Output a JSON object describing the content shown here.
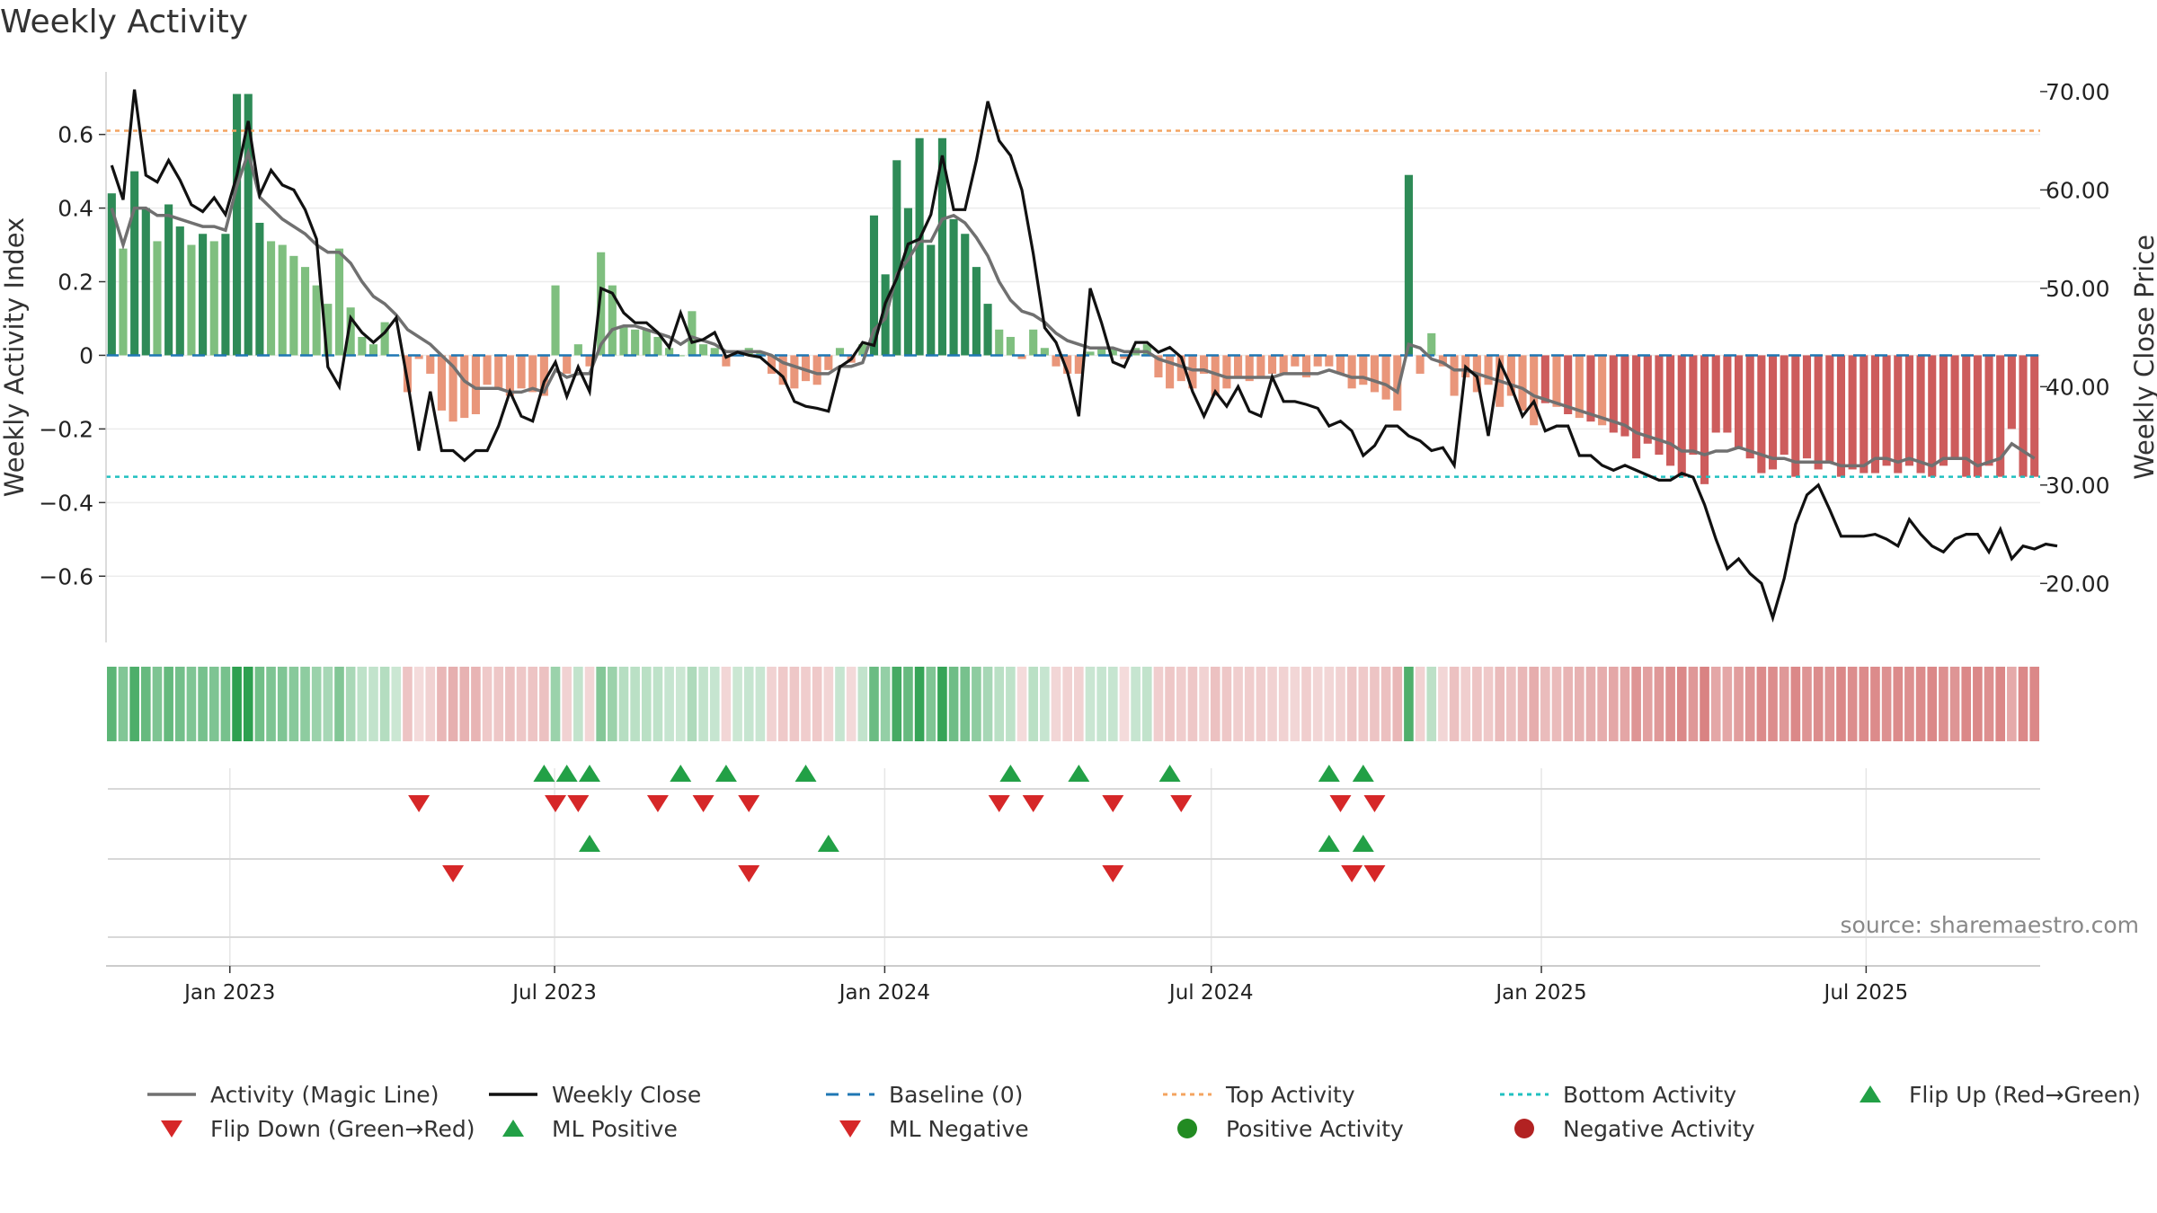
{
  "title": "Weekly Activity",
  "source": "source: sharemaestro.com",
  "chart_data": {
    "type": "bar",
    "title": "Weekly Activity",
    "ylabel": "Weekly Activity Index",
    "y2label": "Weekly Close Price",
    "ylim": [
      -0.78,
      0.77
    ],
    "y2lim": [
      14.0,
      72.0
    ],
    "yticks": [
      0.6,
      0.4,
      0.2,
      0,
      -0.2,
      -0.4,
      -0.6
    ],
    "ytick_labels": [
      "0.6",
      "0.4",
      "0.2",
      "0",
      "−0.2",
      "−0.4",
      "−0.6"
    ],
    "y2ticks": [
      70,
      60,
      50,
      40,
      30,
      20
    ],
    "y2tick_labels": [
      "70.00",
      "60.00",
      "50.00",
      "40.00",
      "30.00",
      "20.00"
    ],
    "xlabels": [
      "Jan 2023",
      "Jul 2023",
      "Jan 2024",
      "Jul 2024",
      "Jan 2025",
      "Jul 2025"
    ],
    "x_start": "2022-10-24",
    "x_end": "2025-10-06",
    "x_label_dates": [
      "2023-01-01",
      "2023-07-01",
      "2024-01-01",
      "2024-07-01",
      "2025-01-01",
      "2025-07-01"
    ],
    "top_activity": 0.61,
    "bottom_activity": -0.33,
    "baseline": 0,
    "activity": [
      0.44,
      0.29,
      0.5,
      0.4,
      0.31,
      0.41,
      0.35,
      0.3,
      0.33,
      0.31,
      0.33,
      0.71,
      0.71,
      0.36,
      0.31,
      0.3,
      0.27,
      0.24,
      0.19,
      0.14,
      0.29,
      0.13,
      0.05,
      0.03,
      0.09,
      0,
      -0.1,
      -0.01,
      -0.05,
      -0.15,
      -0.18,
      -0.17,
      -0.16,
      -0.08,
      -0.09,
      -0.11,
      -0.09,
      -0.1,
      -0.11,
      0.19,
      -0.05,
      0.03,
      -0.03,
      0.28,
      0.19,
      0.08,
      0.07,
      0.07,
      0.05,
      0.02,
      0,
      0.12,
      0.03,
      0.02,
      -0.03,
      0,
      0.02,
      0.01,
      -0.05,
      -0.08,
      -0.09,
      -0.07,
      -0.08,
      -0.04,
      0.02,
      -0.02,
      0.03,
      0.38,
      0.22,
      0.53,
      0.4,
      0.59,
      0.3,
      0.59,
      0.37,
      0.33,
      0.24,
      0.14,
      0.07,
      0.05,
      -0.01,
      0.07,
      0.02,
      -0.03,
      -0.05,
      -0.05,
      0.01,
      0.02,
      0.02,
      -0.01,
      0.02,
      0.03,
      -0.06,
      -0.09,
      -0.07,
      -0.09,
      -0.05,
      -0.11,
      -0.09,
      -0.06,
      -0.07,
      -0.06,
      -0.05,
      -0.05,
      -0.03,
      -0.06,
      -0.03,
      -0.03,
      -0.05,
      -0.09,
      -0.08,
      -0.1,
      -0.12,
      -0.15,
      0.49,
      -0.05,
      0.06,
      -0.03,
      -0.11,
      -0.06,
      -0.1,
      -0.08,
      -0.14,
      -0.11,
      -0.15,
      -0.19,
      -0.13,
      -0.14,
      -0.16,
      -0.17,
      -0.18,
      -0.19,
      -0.21,
      -0.22,
      -0.28,
      -0.24,
      -0.27,
      -0.3,
      -0.33,
      -0.27,
      -0.35,
      -0.21,
      -0.21,
      -0.25,
      -0.28,
      -0.32,
      -0.31,
      -0.27,
      -0.33,
      -0.28,
      -0.31,
      -0.29,
      -0.33,
      -0.31,
      -0.32,
      -0.32,
      -0.3,
      -0.32,
      -0.3,
      -0.32,
      -0.33,
      -0.3,
      -0.28,
      -0.33,
      -0.33,
      -0.3,
      -0.33,
      -0.2,
      -0.33,
      -0.33
    ],
    "magic_line": [
      0.4,
      0.3,
      0.4,
      0.4,
      0.38,
      0.38,
      0.37,
      0.36,
      0.35,
      0.35,
      0.34,
      0.46,
      0.55,
      0.43,
      0.4,
      0.37,
      0.35,
      0.33,
      0.3,
      0.28,
      0.28,
      0.25,
      0.2,
      0.16,
      0.14,
      0.11,
      0.07,
      0.05,
      0.03,
      0,
      -0.03,
      -0.07,
      -0.09,
      -0.09,
      -0.09,
      -0.1,
      -0.1,
      -0.09,
      -0.1,
      -0.04,
      -0.06,
      -0.05,
      -0.05,
      0.03,
      0.07,
      0.08,
      0.08,
      0.07,
      0.06,
      0.05,
      0.03,
      0.05,
      0.04,
      0.03,
      0.01,
      0.01,
      0.01,
      0.01,
      0,
      -0.02,
      -0.03,
      -0.04,
      -0.05,
      -0.05,
      -0.03,
      -0.03,
      -0.02,
      0.07,
      0.1,
      0.22,
      0.26,
      0.31,
      0.31,
      0.37,
      0.38,
      0.36,
      0.32,
      0.27,
      0.2,
      0.15,
      0.12,
      0.11,
      0.09,
      0.06,
      0.04,
      0.03,
      0.02,
      0.02,
      0.02,
      0.01,
      0.01,
      0.01,
      -0.01,
      -0.02,
      -0.03,
      -0.04,
      -0.04,
      -0.05,
      -0.06,
      -0.06,
      -0.06,
      -0.06,
      -0.06,
      -0.05,
      -0.05,
      -0.05,
      -0.05,
      -0.04,
      -0.05,
      -0.06,
      -0.06,
      -0.07,
      -0.08,
      -0.1,
      0.03,
      0.02,
      -0.01,
      -0.02,
      -0.04,
      -0.04,
      -0.05,
      -0.06,
      -0.07,
      -0.08,
      -0.09,
      -0.11,
      -0.12,
      -0.13,
      -0.14,
      -0.15,
      -0.16,
      -0.17,
      -0.18,
      -0.19,
      -0.21,
      -0.22,
      -0.23,
      -0.24,
      -0.26,
      -0.26,
      -0.27,
      -0.26,
      -0.26,
      -0.25,
      -0.26,
      -0.27,
      -0.28,
      -0.28,
      -0.29,
      -0.29,
      -0.29,
      -0.29,
      -0.3,
      -0.3,
      -0.3,
      -0.28,
      -0.28,
      -0.29,
      -0.28,
      -0.29,
      -0.3,
      -0.28,
      -0.28,
      -0.28,
      -0.3,
      -0.29,
      -0.28,
      -0.24,
      -0.26,
      -0.28
    ],
    "close": [
      62.5,
      59.0,
      70.2,
      61.5,
      60.8,
      63.0,
      61.0,
      58.5,
      57.8,
      59.2,
      57.5,
      61.5,
      67.0,
      59.5,
      62.0,
      60.5,
      60.0,
      58.0,
      55.0,
      42.0,
      40.0,
      47.0,
      45.5,
      44.5,
      45.5,
      47.0,
      40.5,
      33.5,
      39.5,
      33.5,
      33.5,
      32.5,
      33.5,
      33.5,
      36.0,
      39.5,
      37.0,
      36.5,
      40.5,
      42.5,
      39.0,
      42.0,
      39.5,
      50.0,
      49.5,
      47.5,
      46.5,
      46.5,
      45.5,
      44.0,
      47.5,
      44.5,
      44.8,
      45.5,
      43.0,
      43.5,
      43.2,
      43.0,
      42.0,
      41.0,
      38.5,
      38.0,
      37.8,
      37.5,
      42.0,
      42.8,
      44.5,
      44.2,
      48.5,
      51.0,
      54.5,
      55.0,
      57.5,
      63.5,
      58.0,
      58.0,
      63.0,
      69.0,
      65.0,
      63.5,
      60.0,
      53.5,
      46.0,
      44.5,
      41.5,
      37.0,
      50.0,
      46.5,
      42.5,
      42.0,
      44.5,
      44.5,
      43.5,
      44.0,
      43.0,
      39.5,
      37.0,
      39.5,
      38.0,
      40.0,
      37.5,
      37.0,
      41.0,
      38.5,
      38.5,
      38.2,
      37.8,
      36.0,
      36.5,
      35.5,
      33.0,
      34.0,
      36.0,
      36.0,
      35.0,
      34.5,
      33.5,
      33.8,
      32.0,
      42.0,
      41.0,
      35.0,
      42.5,
      40.0,
      37.0,
      38.5,
      35.5,
      36.0,
      36.0,
      33.0,
      33.0,
      32.0,
      31.5,
      32.0,
      31.5,
      31.0,
      30.5,
      30.5,
      31.2,
      30.8,
      28.0,
      24.5,
      21.5,
      22.5,
      21.0,
      20.0,
      16.5,
      20.5,
      26.0,
      29.0,
      30.0,
      27.5,
      24.8,
      24.8,
      24.8,
      25.0,
      24.5,
      23.8,
      26.5,
      25.0,
      23.8,
      23.2,
      24.5,
      25.0,
      25.0,
      23.2,
      25.5,
      22.5,
      23.8,
      23.5,
      24.0,
      23.8
    ],
    "flip_up_row1": [
      38,
      40,
      42,
      50,
      54,
      61,
      79,
      85,
      93,
      107,
      110
    ],
    "flip_down_row1": [
      27,
      39,
      41,
      48,
      52,
      56,
      78,
      81,
      88,
      94,
      108,
      111
    ],
    "flip_up_row2": [
      42,
      63,
      107,
      110
    ],
    "flip_down_row2": [
      30,
      56,
      88,
      109,
      111
    ],
    "legend": [
      {
        "label": "Activity (Magic Line)",
        "kind": "line-gray"
      },
      {
        "label": "Weekly Close",
        "kind": "line-black"
      },
      {
        "label": "Baseline (0)",
        "kind": "dash-blue"
      },
      {
        "label": "Top Activity",
        "kind": "dot-orange"
      },
      {
        "label": "Bottom Activity",
        "kind": "dot-cyan"
      },
      {
        "label": "Flip Up (Red→Green)",
        "kind": "tri-up"
      },
      {
        "label": "Flip Down (Green→Red)",
        "kind": "tri-down"
      },
      {
        "label": "ML Positive",
        "kind": "tri-up"
      },
      {
        "label": "ML Negative",
        "kind": "tri-down"
      },
      {
        "label": "Positive Activity",
        "kind": "circle-green"
      },
      {
        "label": "Negative Activity",
        "kind": "circle-red"
      }
    ]
  },
  "colors": {
    "green_strong": "#2e8b57",
    "green_light": "#7fbf7f",
    "red_strong": "#cd5c5c",
    "red_light": "#e9967a",
    "magic_line": "#707070",
    "close_line": "#111111",
    "baseline": "#1f77b4",
    "top": "#f4a460",
    "bottom": "#20c0c0",
    "tri_up": "#22a046",
    "tri_down": "#d62728",
    "circle_green": "#228b22",
    "circle_red": "#b22222"
  }
}
